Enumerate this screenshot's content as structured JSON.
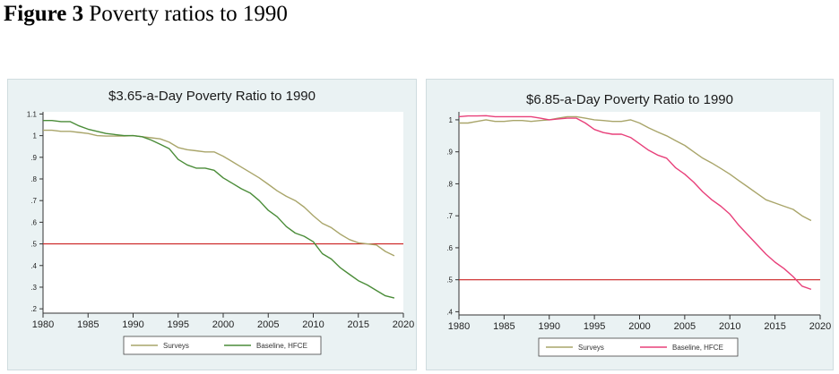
{
  "figure": {
    "label": "Figure 3",
    "caption": "Poverty ratios to 1990"
  },
  "chart_data": [
    {
      "type": "line",
      "title": "$3.65-a-Day Poverty Ratio to 1990",
      "xlabel": "",
      "ylabel": "",
      "xlim": [
        1980,
        2020
      ],
      "ylim": [
        0.18,
        1.11
      ],
      "x_ticks": [
        "1980",
        "1985",
        "1990",
        "1995",
        "2000",
        "2005",
        "2010",
        "2015",
        "2020"
      ],
      "y_ticks": [
        ".2",
        ".3",
        ".4",
        ".5",
        ".6",
        ".7",
        ".8",
        ".9",
        "1",
        "1.1"
      ],
      "reference_line": {
        "y": 0.5,
        "color": "#cc2222"
      },
      "legend_position": "bottom",
      "grid": false,
      "series": [
        {
          "name": "Surveys",
          "color": "#a9a56a",
          "x": [
            1980,
            1981,
            1982,
            1983,
            1984,
            1985,
            1986,
            1987,
            1988,
            1989,
            1990,
            1991,
            1992,
            1993,
            1994,
            1995,
            1996,
            1997,
            1998,
            1999,
            2000,
            2001,
            2002,
            2003,
            2004,
            2005,
            2006,
            2007,
            2008,
            2009,
            2010,
            2011,
            2012,
            2013,
            2014,
            2015,
            2016,
            2017,
            2018,
            2019
          ],
          "y": [
            1.025,
            1.025,
            1.02,
            1.02,
            1.015,
            1.01,
            1.0,
            0.998,
            0.998,
            0.998,
            1.0,
            0.995,
            0.99,
            0.985,
            0.97,
            0.945,
            0.935,
            0.93,
            0.925,
            0.925,
            0.905,
            0.88,
            0.855,
            0.83,
            0.805,
            0.775,
            0.745,
            0.72,
            0.7,
            0.67,
            0.63,
            0.595,
            0.575,
            0.545,
            0.52,
            0.505,
            0.5,
            0.495,
            0.465,
            0.445
          ]
        },
        {
          "name": "Baseline, HFCE",
          "color": "#4a8c38",
          "x": [
            1980,
            1981,
            1982,
            1983,
            1984,
            1985,
            1986,
            1987,
            1988,
            1989,
            1990,
            1991,
            1992,
            1993,
            1994,
            1995,
            1996,
            1997,
            1998,
            1999,
            2000,
            2001,
            2002,
            2003,
            2004,
            2005,
            2006,
            2007,
            2008,
            2009,
            2010,
            2011,
            2012,
            2013,
            2014,
            2015,
            2016,
            2017,
            2018,
            2019
          ],
          "y": [
            1.07,
            1.07,
            1.065,
            1.065,
            1.045,
            1.03,
            1.02,
            1.01,
            1.005,
            1.0,
            1.0,
            0.995,
            0.98,
            0.96,
            0.94,
            0.89,
            0.865,
            0.85,
            0.85,
            0.84,
            0.805,
            0.78,
            0.755,
            0.735,
            0.7,
            0.655,
            0.625,
            0.58,
            0.55,
            0.535,
            0.51,
            0.455,
            0.43,
            0.39,
            0.36,
            0.33,
            0.31,
            0.285,
            0.26,
            0.25
          ]
        }
      ]
    },
    {
      "type": "line",
      "title": "$6.85-a-Day Poverty Ratio to 1990",
      "xlabel": "",
      "ylabel": "",
      "xlim": [
        1980,
        2020
      ],
      "ylim": [
        0.39,
        1.025
      ],
      "x_ticks": [
        "1980",
        "1985",
        "1990",
        "1995",
        "2000",
        "2005",
        "2010",
        "2015",
        "2020"
      ],
      "y_ticks": [
        ".4",
        ".5",
        ".6",
        ".7",
        ".8",
        ".9",
        "1"
      ],
      "reference_line": {
        "y": 0.5,
        "color": "#cc2222"
      },
      "legend_position": "bottom",
      "grid": false,
      "series": [
        {
          "name": "Surveys",
          "color": "#a9a56a",
          "x": [
            1980,
            1981,
            1982,
            1983,
            1984,
            1985,
            1986,
            1987,
            1988,
            1989,
            1990,
            1991,
            1992,
            1993,
            1994,
            1995,
            1996,
            1997,
            1998,
            1999,
            2000,
            2001,
            2002,
            2003,
            2004,
            2005,
            2006,
            2007,
            2008,
            2009,
            2010,
            2011,
            2012,
            2013,
            2014,
            2015,
            2016,
            2017,
            2018,
            2019
          ],
          "y": [
            0.99,
            0.99,
            0.995,
            1.0,
            0.995,
            0.995,
            0.998,
            0.998,
            0.995,
            0.998,
            1.0,
            1.005,
            1.01,
            1.01,
            1.005,
            1.0,
            0.998,
            0.995,
            0.995,
            1.0,
            0.99,
            0.975,
            0.962,
            0.95,
            0.935,
            0.92,
            0.9,
            0.88,
            0.865,
            0.848,
            0.83,
            0.81,
            0.79,
            0.77,
            0.75,
            0.74,
            0.73,
            0.72,
            0.7,
            0.685
          ]
        },
        {
          "name": "Baseline, HFCE",
          "color": "#e8407a",
          "x": [
            1980,
            1981,
            1982,
            1983,
            1984,
            1985,
            1986,
            1987,
            1988,
            1989,
            1990,
            1991,
            1992,
            1993,
            1994,
            1995,
            1996,
            1997,
            1998,
            1999,
            2000,
            2001,
            2002,
            2003,
            2004,
            2005,
            2006,
            2007,
            2008,
            2009,
            2010,
            2011,
            2012,
            2013,
            2014,
            2015,
            2016,
            2017,
            2018,
            2019
          ],
          "y": [
            1.01,
            1.012,
            1.012,
            1.013,
            1.01,
            1.01,
            1.01,
            1.01,
            1.01,
            1.005,
            1.0,
            1.003,
            1.005,
            1.005,
            0.99,
            0.97,
            0.96,
            0.955,
            0.955,
            0.945,
            0.925,
            0.905,
            0.89,
            0.88,
            0.85,
            0.83,
            0.805,
            0.775,
            0.75,
            0.73,
            0.705,
            0.67,
            0.64,
            0.61,
            0.58,
            0.555,
            0.535,
            0.51,
            0.48,
            0.47
          ]
        }
      ]
    }
  ]
}
